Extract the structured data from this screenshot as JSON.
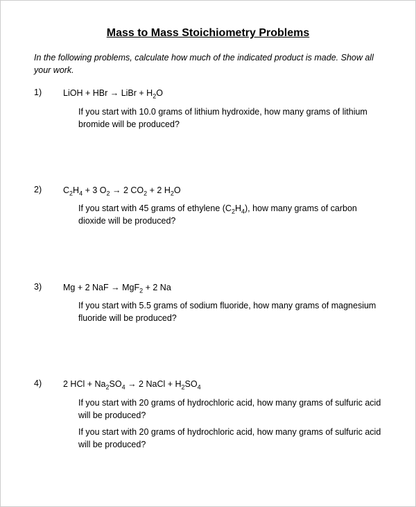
{
  "title": "Mass to Mass Stoichiometry Problems",
  "instructions": "In the following problems, calculate how much of the indicated product is made. Show all your work.",
  "arrow": "→",
  "problems": [
    {
      "num": "1)",
      "eq_parts": [
        "LiOH + HBr ",
        " LiBr + H",
        "2",
        "O"
      ],
      "questions": [
        "If you start with 10.0 grams of lithium hydroxide, how many grams of lithium bromide will be produced?"
      ]
    },
    {
      "num": "2)",
      "eq_parts": [
        "C",
        "2",
        "H",
        "4",
        " + 3 O",
        "2",
        " ",
        " 2 CO",
        "2",
        " + 2 H",
        "2",
        "O"
      ],
      "q2_a": "If you start with 45 grams of ethylene (C",
      "q2_b": "H",
      "q2_c": "), how many grams of carbon dioxide will be produced?"
    },
    {
      "num": "3)",
      "eq_parts": [
        "Mg + 2 NaF ",
        " MgF",
        "2",
        " + 2 Na"
      ],
      "questions": [
        "If you start with 5.5 grams of sodium fluoride, how many grams of magnesium fluoride will be produced?"
      ]
    },
    {
      "num": "4)",
      "eq_parts": [
        "2 HCl + Na",
        "2",
        "SO",
        "4",
        " ",
        " 2 NaCl + H",
        "2",
        "SO",
        "4"
      ],
      "questions": [
        "If you start with 20 grams of hydrochloric acid, how many grams of sulfuric acid will be produced?",
        "If you start with 20 grams of hydrochloric acid, how many grams of sulfuric acid will be produced?"
      ]
    }
  ]
}
